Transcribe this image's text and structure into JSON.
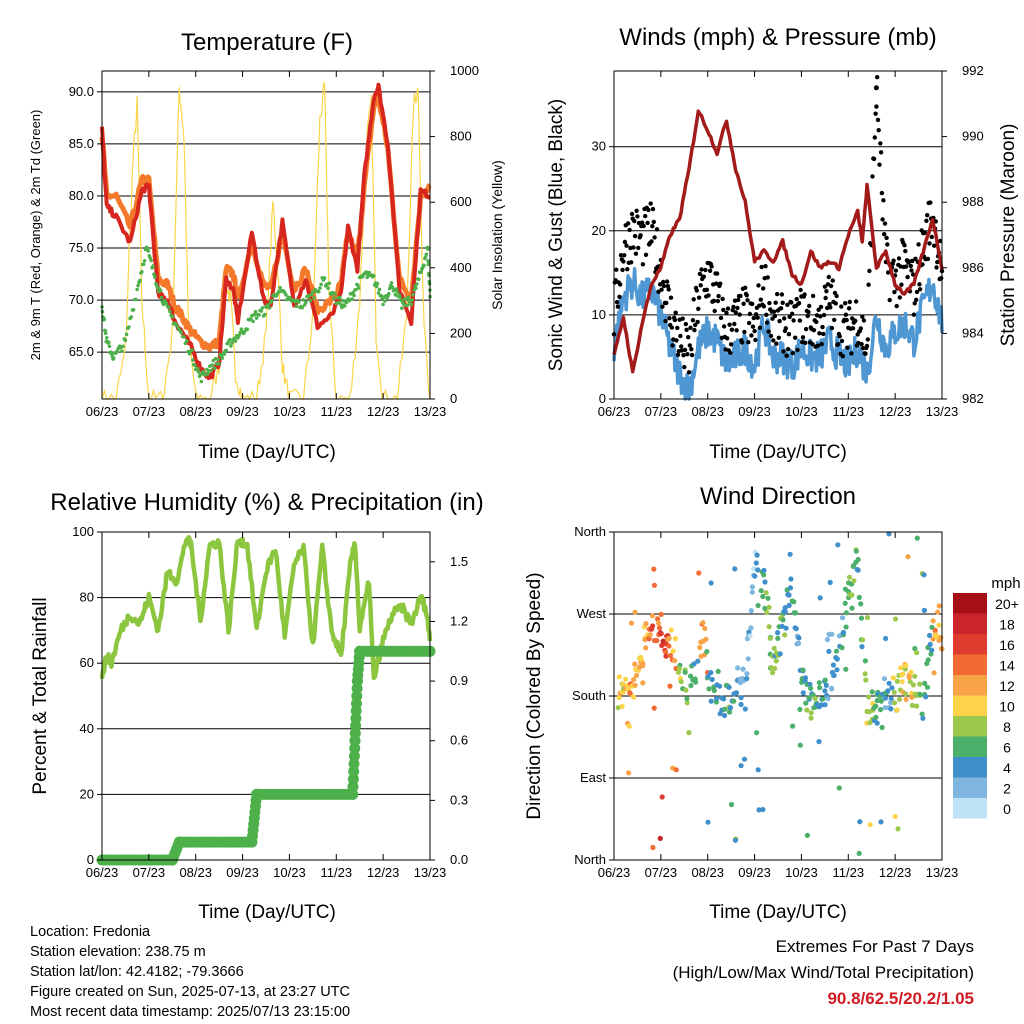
{
  "panels": {
    "temperature": {
      "title": "Temperature (F)",
      "ylabel_left": "2m & 9m T (Red, Orange) & 2m Td (Green)",
      "ylabel_right": "Solar Insolation (Yellow)",
      "xlabel": "Time (Day/UTC)"
    },
    "winds": {
      "title": "Winds (mph) & Pressure (mb)",
      "ylabel_left": "Sonic Wind & Gust (Blue, Black)",
      "ylabel_right": "Station Pressure (Maroon)",
      "xlabel": "Time (Day/UTC)"
    },
    "humidity": {
      "title": "Relative Humidity (%) & Precipitation (in)",
      "ylabel_left": "Percent & Total Rainfall",
      "xlabel": "Time (Day/UTC)"
    },
    "direction": {
      "title": "Wind Direction",
      "ylabel_left": "Direction (Colored By Speed)",
      "xlabel": "Time (Day/UTC)",
      "legend_title": "mph"
    }
  },
  "info": {
    "location": "Location: Fredonia",
    "elevation": "Station elevation: 238.75 m",
    "latlon": "Station lat/lon: 42.4182; -79.3666",
    "created": "Figure created on Sun, 2025-07-13, at 23:27 UTC",
    "recent": "Most recent data timestamp: 2025/07/13 23:15:00"
  },
  "extremes": {
    "line1": "Extremes For Past 7 Days",
    "line2": "(High/Low/Max Wind/Total Precipitation)",
    "values": "90.8/62.5/20.2/1.05"
  },
  "colors": {
    "temp_2m": "#d7261e",
    "temp_9m": "#f4792a",
    "dewpoint": "#4db04a",
    "solar": "#f9d54a",
    "wind": "#4f97d2",
    "gust": "#000000",
    "pressure": "#a31a1a",
    "rh": "#8cc63f",
    "precip": "#4db04a"
  },
  "chart_data": [
    {
      "type": "line",
      "title": "Temperature (F)",
      "xlabel": "Time (Day/UTC)",
      "ylabel": "2m & 9m T (Red, Orange) & 2m Td (Green)",
      "ylabel_right": "Solar Insolation (Yellow)",
      "x_ticks": [
        "06/23",
        "07/23",
        "08/23",
        "09/23",
        "10/23",
        "11/23",
        "12/23",
        "13/23"
      ],
      "y_ticks": [
        "65.0",
        "70.0",
        "75.0",
        "80.0",
        "85.0",
        "90.0"
      ],
      "y2_ticks": [
        "0",
        "200",
        "400",
        "600",
        "800",
        "1000"
      ],
      "ylim": [
        60.5,
        92.0
      ],
      "y2lim": [
        0,
        1000
      ],
      "grid": true,
      "series": [
        {
          "name": "2m T",
          "x": [
            6.0,
            6.1,
            6.3,
            6.6,
            6.85,
            7.0,
            7.2,
            7.4,
            7.55,
            7.7,
            7.9,
            8.1,
            8.3,
            8.5,
            8.65,
            8.8,
            8.9,
            9.2,
            9.45,
            9.6,
            9.85,
            10.1,
            10.35,
            10.6,
            10.9,
            11.1,
            11.25,
            11.45,
            11.6,
            11.8,
            11.9,
            12.1,
            12.35,
            12.6,
            12.8,
            13.0
          ],
          "y": [
            86.5,
            79,
            78,
            75.5,
            80.5,
            81,
            70.5,
            70,
            68,
            67,
            65.5,
            63.5,
            62.5,
            64,
            72,
            71,
            68,
            76.5,
            70,
            69.5,
            77.5,
            69.5,
            72,
            67.5,
            68.5,
            70.5,
            77,
            73,
            82,
            89.5,
            90.5,
            85,
            71,
            68,
            80.5,
            80
          ]
        },
        {
          "name": "9m T",
          "x": [
            6.0,
            6.1,
            6.3,
            6.6,
            6.85,
            7.0,
            7.2,
            7.4,
            7.55,
            7.7,
            7.9,
            8.1,
            8.3,
            8.5,
            8.65,
            8.8,
            8.9,
            9.2,
            9.45,
            9.6,
            9.85,
            10.1,
            10.35,
            10.6,
            10.9,
            11.1,
            11.25,
            11.45,
            11.6,
            11.8,
            11.9,
            12.1,
            12.35,
            12.6,
            12.8,
            13.0
          ],
          "y": [
            86,
            80,
            80,
            77,
            81.5,
            81.5,
            72,
            71.5,
            69.5,
            68.5,
            67,
            66,
            65.5,
            66,
            73,
            72.5,
            70,
            75.5,
            71.5,
            71,
            76.5,
            71,
            73,
            69,
            70,
            71.5,
            76.5,
            74,
            81,
            88.5,
            89.5,
            84.5,
            72,
            70,
            80,
            81
          ]
        },
        {
          "name": "2m Td",
          "x": [
            6.0,
            6.1,
            6.25,
            6.5,
            6.75,
            6.95,
            7.15,
            7.35,
            7.6,
            7.9,
            8.1,
            8.3,
            8.55,
            8.75,
            9.0,
            9.25,
            9.5,
            9.75,
            10.0,
            10.25,
            10.5,
            10.75,
            11.0,
            11.2,
            11.4,
            11.6,
            11.8,
            12.0,
            12.2,
            12.4,
            12.6,
            12.8,
            12.95,
            13.0
          ],
          "y": [
            69.5,
            66,
            64.5,
            66,
            71,
            75,
            72,
            69.5,
            67.5,
            65,
            62.5,
            63.5,
            64.5,
            66,
            67,
            68.5,
            69,
            71,
            70,
            69.5,
            70.5,
            72,
            70,
            69.5,
            71,
            72.5,
            72,
            70,
            71.5,
            69.5,
            70,
            72.5,
            75,
            70.5
          ]
        },
        {
          "name": "Solar Insolation",
          "axis": "right",
          "x": [
            6.0,
            6.3,
            6.5,
            6.65,
            6.75,
            6.85,
            7.0,
            7.3,
            7.5,
            7.65,
            7.75,
            7.85,
            8.0,
            8.3,
            8.5,
            8.65,
            8.75,
            8.85,
            9.0,
            9.3,
            9.5,
            9.65,
            9.75,
            9.85,
            10.0,
            10.3,
            10.5,
            10.65,
            10.75,
            10.85,
            11.0,
            11.3,
            11.5,
            11.65,
            11.75,
            11.85,
            12.0,
            12.3,
            12.5,
            12.65,
            12.75,
            12.85,
            13.0
          ],
          "y": [
            0,
            0,
            150,
            700,
            900,
            300,
            0,
            0,
            200,
            950,
            800,
            200,
            0,
            0,
            100,
            350,
            300,
            80,
            0,
            0,
            200,
            600,
            400,
            100,
            0,
            0,
            250,
            850,
            950,
            300,
            0,
            0,
            300,
            800,
            900,
            200,
            0,
            0,
            250,
            900,
            950,
            300,
            0
          ]
        }
      ]
    },
    {
      "type": "line",
      "title": "Winds (mph) & Pressure (mb)",
      "xlabel": "Time (Day/UTC)",
      "ylabel": "Sonic Wind & Gust (Blue, Black)",
      "ylabel_right": "Station Pressure (Maroon)",
      "x_ticks": [
        "06/23",
        "07/23",
        "08/23",
        "09/23",
        "10/23",
        "11/23",
        "12/23",
        "13/23"
      ],
      "y_ticks": [
        "0",
        "10",
        "20",
        "30"
      ],
      "y2_ticks": [
        "982",
        "984",
        "986",
        "988",
        "990",
        "992"
      ],
      "ylim": [
        0,
        39
      ],
      "y2lim": [
        982,
        992
      ],
      "grid": true,
      "series": [
        {
          "name": "Sonic Wind",
          "x": [
            6.0,
            6.2,
            6.4,
            6.6,
            6.8,
            7.0,
            7.2,
            7.4,
            7.6,
            7.8,
            8.0,
            8.2,
            8.4,
            8.6,
            8.8,
            9.0,
            9.2,
            9.4,
            9.6,
            9.8,
            10.0,
            10.2,
            10.4,
            10.6,
            10.8,
            11.0,
            11.2,
            11.4,
            11.6,
            11.8,
            12.0,
            12.2,
            12.4,
            12.6,
            12.8,
            13.0
          ],
          "y": [
            6,
            12,
            14,
            12,
            13,
            10,
            6,
            3,
            1,
            6,
            8,
            7,
            4,
            5,
            6,
            4,
            9,
            5,
            5,
            4,
            6,
            5,
            5,
            7,
            5,
            4,
            6,
            3,
            10,
            6,
            8,
            9,
            7,
            11,
            14,
            9
          ]
        },
        {
          "name": "Gust",
          "x": [
            6.0,
            6.2,
            6.4,
            6.6,
            6.8,
            7.0,
            7.2,
            7.4,
            7.6,
            7.8,
            8.0,
            8.2,
            8.4,
            8.6,
            8.8,
            9.0,
            9.2,
            9.4,
            9.6,
            9.8,
            10.0,
            10.2,
            10.4,
            10.6,
            10.8,
            11.0,
            11.2,
            11.4,
            11.6,
            11.8,
            12.0,
            12.2,
            12.4,
            12.6,
            12.8,
            13.0
          ],
          "y": [
            10,
            18,
            20,
            19,
            20,
            15,
            10,
            7,
            5,
            12,
            15,
            12,
            8,
            9,
            10,
            8,
            14,
            9,
            9,
            8,
            10,
            9,
            9,
            12,
            9,
            8,
            10,
            6,
            37,
            16,
            14,
            16,
            13,
            18,
            22,
            15
          ]
        },
        {
          "name": "Station Pressure",
          "axis": "right",
          "x": [
            6.0,
            6.2,
            6.4,
            6.6,
            6.8,
            7.0,
            7.2,
            7.4,
            7.6,
            7.8,
            8.0,
            8.2,
            8.4,
            8.6,
            8.8,
            9.0,
            9.2,
            9.4,
            9.6,
            9.8,
            10.0,
            10.2,
            10.4,
            10.6,
            10.8,
            11.0,
            11.2,
            11.3,
            11.4,
            11.6,
            11.8,
            12.0,
            12.2,
            12.4,
            12.6,
            12.8,
            13.0
          ],
          "y": [
            983.3,
            984.5,
            982.8,
            984.3,
            985.5,
            986,
            987,
            987.5,
            989,
            990.8,
            990.2,
            989.5,
            990.5,
            989,
            988,
            986.2,
            986.5,
            986.2,
            986.8,
            985.8,
            985.5,
            986.5,
            986,
            986.2,
            986,
            987,
            987.7,
            986.8,
            988.5,
            986,
            986.5,
            985.5,
            985.2,
            985.5,
            986.5,
            987.5,
            986
          ]
        }
      ]
    },
    {
      "type": "line",
      "title": "Relative Humidity (%) & Precipitation (in)",
      "xlabel": "Time (Day/UTC)",
      "ylabel": "Percent & Total Rainfall",
      "x_ticks": [
        "06/23",
        "07/23",
        "08/23",
        "09/23",
        "10/23",
        "11/23",
        "12/23",
        "13/23"
      ],
      "y_ticks": [
        "0",
        "20",
        "40",
        "60",
        "80",
        "100"
      ],
      "y2_ticks": [
        "0.0",
        "0.3",
        "0.6",
        "0.9",
        "1.2",
        "1.5"
      ],
      "ylim": [
        0,
        100
      ],
      "y2lim": [
        0,
        1.65
      ],
      "grid": true,
      "series": [
        {
          "name": "Relative Humidity",
          "x": [
            6.0,
            6.1,
            6.2,
            6.4,
            6.6,
            6.8,
            7.0,
            7.2,
            7.4,
            7.6,
            7.8,
            7.9,
            8.1,
            8.3,
            8.5,
            8.7,
            8.9,
            9.1,
            9.3,
            9.5,
            9.7,
            9.9,
            10.1,
            10.3,
            10.5,
            10.7,
            10.9,
            11.1,
            11.3,
            11.4,
            11.5,
            11.7,
            11.8,
            12.0,
            12.2,
            12.4,
            12.6,
            12.8,
            12.9,
            13.0
          ],
          "y": [
            56,
            62,
            60,
            70,
            75,
            72,
            80,
            70,
            88,
            85,
            98,
            96,
            73,
            96,
            97,
            70,
            98,
            96,
            70,
            88,
            95,
            68,
            90,
            95,
            65,
            95,
            70,
            62,
            90,
            97,
            70,
            85,
            55,
            67,
            75,
            77,
            72,
            80,
            77,
            68
          ]
        },
        {
          "name": "Total Rainfall",
          "axis": "right",
          "x": [
            6.0,
            7.5,
            7.65,
            9.2,
            9.3,
            9.35,
            11.35,
            11.4,
            11.45,
            11.5,
            13.0
          ],
          "y": [
            0.0,
            0.0,
            0.09,
            0.09,
            0.33,
            0.33,
            0.33,
            0.6,
            0.9,
            1.05,
            1.05
          ]
        }
      ]
    },
    {
      "type": "scatter",
      "title": "Wind Direction",
      "xlabel": "Time (Day/UTC)",
      "ylabel": "Direction (Colored By Speed)",
      "x_ticks": [
        "06/23",
        "07/23",
        "08/23",
        "09/23",
        "10/23",
        "11/23",
        "12/23",
        "13/23"
      ],
      "y_ticks": [
        "North",
        "East",
        "South",
        "West",
        "North"
      ],
      "ylim": [
        0,
        360
      ],
      "grid": true,
      "legend": {
        "title": "mph",
        "labels": [
          "20+",
          "18",
          "16",
          "14",
          "12",
          "10",
          "8",
          "6",
          "4",
          "2",
          "0"
        ],
        "colors": [
          "#a50f15",
          "#c9252b",
          "#dd3c2e",
          "#f26a34",
          "#f9a349",
          "#fdd34a",
          "#9cc94d",
          "#4caf6a",
          "#3f8fcb",
          "#7eb6e0",
          "#bfe1f6"
        ],
        "placement": "right"
      },
      "series": [
        {
          "name": "Direction",
          "x": [
            6.1,
            6.3,
            6.5,
            6.7,
            6.9,
            7.1,
            7.3,
            7.6,
            7.9,
            8.1,
            8.4,
            8.6,
            8.8,
            9.0,
            9.2,
            9.4,
            9.6,
            9.8,
            10.0,
            10.2,
            10.4,
            10.6,
            10.8,
            11.0,
            11.2,
            11.4,
            11.6,
            11.8,
            12.0,
            12.2,
            12.4,
            12.6,
            12.8,
            13.0
          ],
          "y": [
            180,
            190,
            200,
            250,
            260,
            240,
            230,
            185,
            250,
            180,
            175,
            190,
            200,
            330,
            300,
            210,
            260,
            290,
            200,
            170,
            180,
            190,
            230,
            300,
            330,
            170,
            160,
            190,
            180,
            200,
            185,
            170,
            260,
            250
          ],
          "speed": [
            10,
            12,
            11,
            14,
            16,
            12,
            8,
            6,
            13,
            5,
            4,
            6,
            3,
            2,
            5,
            7,
            6,
            5,
            4,
            6,
            5,
            3,
            4,
            7,
            6,
            8,
            5,
            4,
            9,
            10,
            7,
            5,
            12,
            13
          ]
        }
      ]
    }
  ]
}
